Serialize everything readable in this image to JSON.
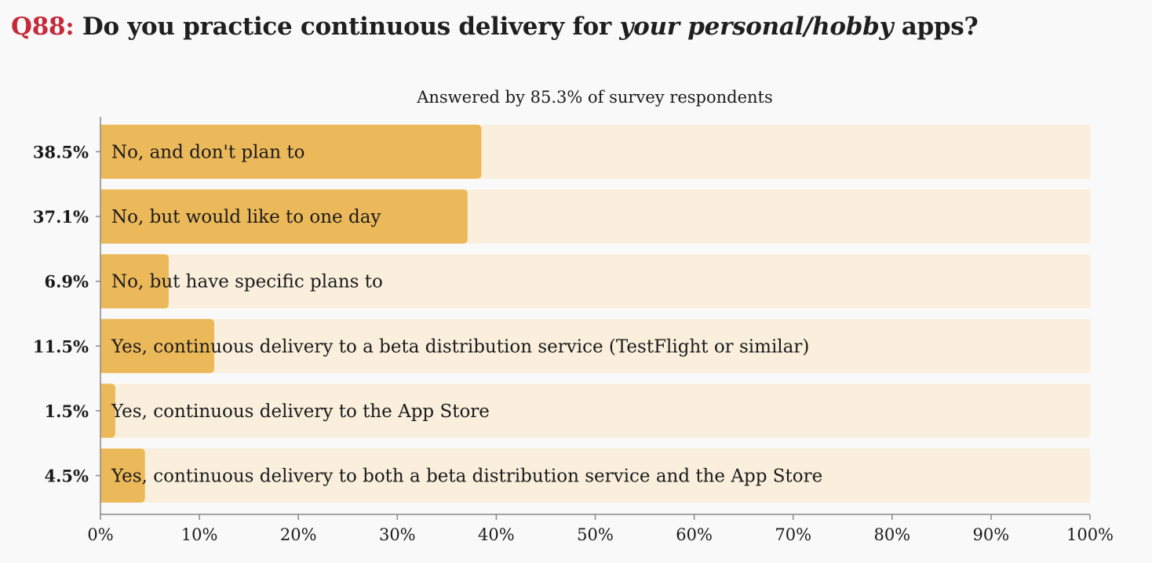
{
  "header": {
    "question_number": "Q88:",
    "question_before": "Do you practice continuous delivery for",
    "question_emphasis": "your personal/hobby",
    "question_after": "apps?"
  },
  "colors": {
    "question_number": "#c62a3a",
    "bar_fill": "#ecb95a",
    "bar_track": "#faefdc",
    "axis": "#888888",
    "background": "#f9f9f9"
  },
  "chart_data": {
    "type": "bar",
    "orientation": "horizontal",
    "subtitle": "Answered by 85.3% of survey respondents",
    "categories": [
      "No, and don't plan to",
      "No, but would like to one day",
      "No, but have specific plans to",
      "Yes, continuous delivery to a beta distribution service (TestFlight or similar)",
      "Yes, continuous delivery to the App Store",
      "Yes, continuous delivery to both a beta distribution service and the App Store"
    ],
    "values": [
      38.5,
      37.1,
      6.9,
      11.5,
      1.5,
      4.5
    ],
    "value_labels": [
      "38.5%",
      "37.1%",
      "6.9%",
      "11.5%",
      "1.5%",
      "4.5%"
    ],
    "xlim": [
      0,
      100
    ],
    "xticks": [
      0,
      10,
      20,
      30,
      40,
      50,
      60,
      70,
      80,
      90,
      100
    ],
    "xtick_labels": [
      "0%",
      "10%",
      "20%",
      "30%",
      "40%",
      "50%",
      "60%",
      "70%",
      "80%",
      "90%",
      "100%"
    ],
    "grid": false,
    "legend": "none"
  }
}
